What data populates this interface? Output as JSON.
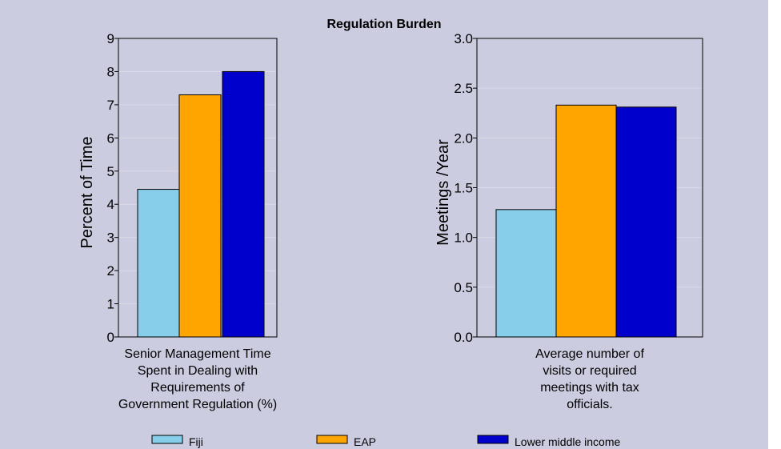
{
  "title": "Regulation Burden",
  "colors": {
    "background": "#cccce0",
    "gridline": "#d9d9ea",
    "series": [
      "#87ceeb",
      "#ffa500",
      "#0000cc"
    ]
  },
  "legend": {
    "placement": "bottom",
    "items": [
      {
        "label": "Fiji",
        "color": "#87ceeb"
      },
      {
        "label": "EAP",
        "color": "#ffa500"
      },
      {
        "label": "Lower middle income",
        "color": "#0000cc"
      }
    ]
  },
  "chart_data": [
    {
      "type": "bar",
      "category_label": [
        "Senior Management Time",
        "Spent in Dealing with",
        "Requirements of",
        "Government Regulation (%)"
      ],
      "ylabel": "Percent of Time",
      "ylim": [
        0,
        9
      ],
      "yticks": [
        "0",
        "1",
        "2",
        "3",
        "4",
        "5",
        "6",
        "7",
        "8",
        "9"
      ],
      "series": [
        {
          "name": "Fiji",
          "values": [
            4.45
          ]
        },
        {
          "name": "EAP",
          "values": [
            7.3
          ]
        },
        {
          "name": "Lower middle income",
          "values": [
            8.0
          ]
        }
      ]
    },
    {
      "type": "bar",
      "category_label": [
        "Average number of",
        "visits or required",
        "meetings with tax",
        "officials."
      ],
      "ylabel": "Meetings /Year",
      "ylim": [
        0,
        3
      ],
      "yticks": [
        "0.0",
        "0.5",
        "1.0",
        "1.5",
        "2.0",
        "2.5",
        "3.0"
      ],
      "series": [
        {
          "name": "Fiji",
          "values": [
            1.28
          ]
        },
        {
          "name": "EAP",
          "values": [
            2.33
          ]
        },
        {
          "name": "Lower middle income",
          "values": [
            2.31
          ]
        }
      ]
    }
  ]
}
